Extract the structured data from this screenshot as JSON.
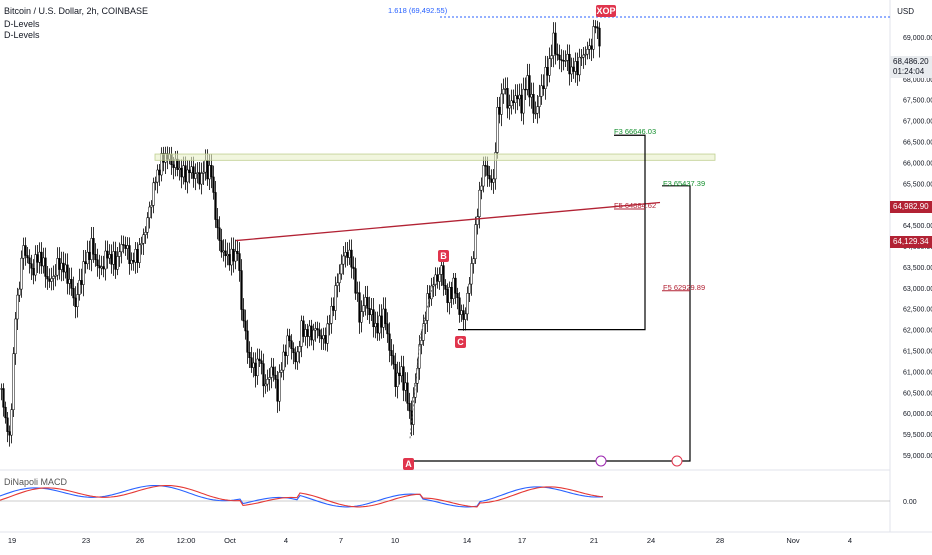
{
  "title": "Bitcoin / U.S. Dollar, 2h, COINBASE",
  "indicators": [
    "D-Levels",
    "D-Levels"
  ],
  "currency": "USD",
  "price_tag": {
    "price": "68,486.20",
    "countdown": "01:24:04"
  },
  "level_tags": [
    "64,982.90",
    "64,129.34"
  ],
  "price_axis": [
    "69,000.00",
    "68,500.00",
    "68,000.00",
    "67,500.00",
    "67,000.00",
    "66,500.00",
    "66,000.00",
    "65,500.00",
    "65,000.00",
    "64,500.00",
    "64,000.00",
    "63,500.00",
    "63,000.00",
    "62,500.00",
    "62,000.00",
    "61,500.00",
    "61,000.00",
    "60,500.00",
    "60,000.00",
    "59,500.00",
    "59,000.00"
  ],
  "macd_axis": "0.00",
  "time_axis": [
    "19",
    "23",
    "26",
    "12:00",
    "Oct",
    "4",
    "7",
    "10",
    "14",
    "17",
    "21",
    "24",
    "28",
    "Nov",
    "4"
  ],
  "pattern": {
    "xop": "XOP",
    "ext": "1.618 (69,492.55)",
    "points": [
      "A",
      "B",
      "C"
    ],
    "fib_labels": [
      "F3   66646.03",
      "F3 65437.39",
      "F5   64884.62",
      "F5 62929.89"
    ]
  },
  "macd_title": "DiNapoli MACD",
  "colors": {
    "up": "#ffffff",
    "down": "#000000",
    "resistance": "#b22234",
    "accent": "#e0354d",
    "fib_green": "#138f2d",
    "macd_fast": "#2962ff",
    "macd_slow": "#e53935"
  }
}
